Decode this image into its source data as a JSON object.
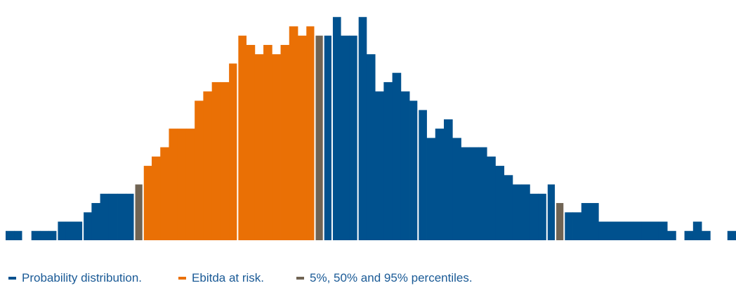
{
  "chart_data": {
    "type": "bar",
    "title": "",
    "xlabel": "",
    "ylabel": "",
    "grid": false,
    "ylim": [
      0,
      25
    ],
    "legend": {
      "placement": "bottom-left",
      "entries": [
        {
          "label": "Probability distribution.",
          "color": "#00518e"
        },
        {
          "label": "Ebitda at risk.",
          "color": "#ea7005"
        },
        {
          "label": "5%, 50% and 95% percentiles.",
          "color": "#706454"
        }
      ]
    },
    "colors": {
      "distribution": "#00518e",
      "at_risk": "#ea7005",
      "percentile": "#706454"
    },
    "bins": [
      {
        "v": 1,
        "g": "distribution"
      },
      {
        "v": 1,
        "g": "distribution"
      },
      {
        "v": 0,
        "g": "distribution"
      },
      {
        "v": 1,
        "g": "distribution"
      },
      {
        "v": 1,
        "g": "distribution"
      },
      {
        "v": 1,
        "g": "distribution"
      },
      {
        "v": 2,
        "g": "distribution"
      },
      {
        "v": 2,
        "g": "distribution"
      },
      {
        "v": 2,
        "g": "distribution"
      },
      {
        "v": 3,
        "g": "distribution"
      },
      {
        "v": 4,
        "g": "distribution"
      },
      {
        "v": 5,
        "g": "distribution"
      },
      {
        "v": 5,
        "g": "distribution"
      },
      {
        "v": 5,
        "g": "distribution"
      },
      {
        "v": 5,
        "g": "distribution"
      },
      {
        "v": 6,
        "g": "percentile"
      },
      {
        "v": 8,
        "g": "at_risk"
      },
      {
        "v": 9,
        "g": "at_risk"
      },
      {
        "v": 10,
        "g": "at_risk"
      },
      {
        "v": 12,
        "g": "at_risk"
      },
      {
        "v": 12,
        "g": "at_risk"
      },
      {
        "v": 12,
        "g": "at_risk"
      },
      {
        "v": 15,
        "g": "at_risk"
      },
      {
        "v": 16,
        "g": "at_risk"
      },
      {
        "v": 17,
        "g": "at_risk"
      },
      {
        "v": 17,
        "g": "at_risk"
      },
      {
        "v": 19,
        "g": "at_risk"
      },
      {
        "v": 22,
        "g": "at_risk"
      },
      {
        "v": 21,
        "g": "at_risk"
      },
      {
        "v": 20,
        "g": "at_risk"
      },
      {
        "v": 21,
        "g": "at_risk"
      },
      {
        "v": 20,
        "g": "at_risk"
      },
      {
        "v": 21,
        "g": "at_risk"
      },
      {
        "v": 23,
        "g": "at_risk"
      },
      {
        "v": 22,
        "g": "at_risk"
      },
      {
        "v": 23,
        "g": "at_risk"
      },
      {
        "v": 22,
        "g": "percentile"
      },
      {
        "v": 22,
        "g": "distribution"
      },
      {
        "v": 24,
        "g": "distribution"
      },
      {
        "v": 22,
        "g": "distribution"
      },
      {
        "v": 22,
        "g": "distribution"
      },
      {
        "v": 24,
        "g": "distribution"
      },
      {
        "v": 20,
        "g": "distribution"
      },
      {
        "v": 16,
        "g": "distribution"
      },
      {
        "v": 17,
        "g": "distribution"
      },
      {
        "v": 18,
        "g": "distribution"
      },
      {
        "v": 16,
        "g": "distribution"
      },
      {
        "v": 15,
        "g": "distribution"
      },
      {
        "v": 14,
        "g": "distribution"
      },
      {
        "v": 11,
        "g": "distribution"
      },
      {
        "v": 12,
        "g": "distribution"
      },
      {
        "v": 13,
        "g": "distribution"
      },
      {
        "v": 11,
        "g": "distribution"
      },
      {
        "v": 10,
        "g": "distribution"
      },
      {
        "v": 10,
        "g": "distribution"
      },
      {
        "v": 10,
        "g": "distribution"
      },
      {
        "v": 9,
        "g": "distribution"
      },
      {
        "v": 8,
        "g": "distribution"
      },
      {
        "v": 7,
        "g": "distribution"
      },
      {
        "v": 6,
        "g": "distribution"
      },
      {
        "v": 6,
        "g": "distribution"
      },
      {
        "v": 5,
        "g": "distribution"
      },
      {
        "v": 5,
        "g": "distribution"
      },
      {
        "v": 6,
        "g": "distribution"
      },
      {
        "v": 4,
        "g": "percentile"
      },
      {
        "v": 3,
        "g": "distribution"
      },
      {
        "v": 3,
        "g": "distribution"
      },
      {
        "v": 4,
        "g": "distribution"
      },
      {
        "v": 4,
        "g": "distribution"
      },
      {
        "v": 2,
        "g": "distribution"
      },
      {
        "v": 2,
        "g": "distribution"
      },
      {
        "v": 2,
        "g": "distribution"
      },
      {
        "v": 2,
        "g": "distribution"
      },
      {
        "v": 2,
        "g": "distribution"
      },
      {
        "v": 2,
        "g": "distribution"
      },
      {
        "v": 2,
        "g": "distribution"
      },
      {
        "v": 2,
        "g": "distribution"
      },
      {
        "v": 1,
        "g": "distribution"
      },
      {
        "v": 0,
        "g": "distribution"
      },
      {
        "v": 1,
        "g": "distribution"
      },
      {
        "v": 2,
        "g": "distribution"
      },
      {
        "v": 1,
        "g": "distribution"
      },
      {
        "v": 0,
        "g": "distribution"
      },
      {
        "v": 0,
        "g": "distribution"
      },
      {
        "v": 1,
        "g": "distribution"
      }
    ]
  }
}
